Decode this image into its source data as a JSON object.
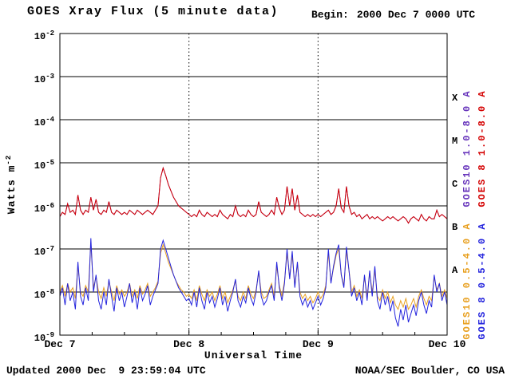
{
  "header": {
    "title": "GOES Xray Flux (5 minute data)",
    "begin_label": "Begin:",
    "begin_value": "2000 Dec 7 0000 UTC"
  },
  "footer": {
    "updated": "Updated 2000 Dec  9 23:59:04 UTC",
    "credit": "NOAA/SEC Boulder, CO USA"
  },
  "chart_data": {
    "type": "line",
    "title": "GOES Xray Flux (5 minute data)",
    "xlabel": "Universal Time",
    "ylabel": "Watts m-2",
    "ylabel_base": "Watts m",
    "ylabel_exp": "-2",
    "y_base": "10",
    "x_range_days": [
      0,
      3
    ],
    "ylog_range": [
      -9,
      -2
    ],
    "y_tick_exponents": [
      -2,
      -3,
      -4,
      -5,
      -6,
      -7,
      -8,
      -9
    ],
    "x_ticks": [
      {
        "label": "Dec 7",
        "day": 0
      },
      {
        "label": "Dec 8",
        "day": 1
      },
      {
        "label": "Dec 9",
        "day": 2
      },
      {
        "label": "Dec 10",
        "day": 3
      }
    ],
    "flare_classes": [
      {
        "label": "X",
        "log_center": -3.5
      },
      {
        "label": "M",
        "log_center": -4.5
      },
      {
        "label": "C",
        "log_center": -5.5
      },
      {
        "label": "B",
        "log_center": -6.5
      },
      {
        "label": "A",
        "log_center": -7.5
      }
    ],
    "grid": {
      "h_line_exponents": [
        -3,
        -4,
        -5,
        -6,
        -7,
        -8
      ],
      "v_dotted_days": [
        1,
        2
      ]
    },
    "sample_step_days": 0.02,
    "series": [
      {
        "name": "GOES10 1.0-8.0 A",
        "color": "#6633bb",
        "values": [
          -6.25,
          -6.15,
          -6.2,
          -5.95,
          -6.15,
          -6.1,
          -6.2,
          -5.75,
          -6.1,
          -6.2,
          -6.1,
          -6.15,
          -5.8,
          -6.1,
          -5.85,
          -6.15,
          -6.2,
          -6.1,
          -6.15,
          -5.9,
          -6.15,
          -6.2,
          -6.1,
          -6.15,
          -6.2,
          -6.15,
          -6.2,
          -6.1,
          -6.15,
          -6.2,
          -6.1,
          -6.15,
          -6.2,
          -6.15,
          -6.1,
          -6.15,
          -6.2,
          -6.1,
          -6.0,
          -5.35,
          -5.12,
          -5.3,
          -5.5,
          -5.65,
          -5.8,
          -5.9,
          -6.0,
          -6.05,
          -6.1,
          -6.15,
          -6.2,
          -6.25,
          -6.2,
          -6.25,
          -6.1,
          -6.2,
          -6.25,
          -6.15,
          -6.2,
          -6.25,
          -6.2,
          -6.25,
          -6.1,
          -6.2,
          -6.25,
          -6.3,
          -6.2,
          -6.25,
          -6.0,
          -6.2,
          -6.25,
          -6.2,
          -6.25,
          -6.1,
          -6.2,
          -6.25,
          -6.2,
          -5.9,
          -6.15,
          -6.2,
          -6.25,
          -6.2,
          -6.1,
          -6.2,
          -5.8,
          -6.05,
          -6.2,
          -6.1,
          -5.55,
          -6.0,
          -5.6,
          -6.1,
          -5.75,
          -6.15,
          -6.2,
          -6.25,
          -6.2,
          -6.25,
          -6.2,
          -6.25,
          -6.2,
          -6.25,
          -6.2,
          -6.15,
          -6.1,
          -6.2,
          -6.15,
          -6.0,
          -5.6,
          -6.05,
          -6.15,
          -5.55,
          -6.0,
          -6.2,
          -6.15,
          -6.25,
          -6.2,
          -6.3,
          -6.25,
          -6.2,
          -6.3,
          -6.25,
          -6.3,
          -6.25,
          -6.3,
          -6.35,
          -6.3,
          -6.25,
          -6.3,
          -6.25,
          -6.3,
          -6.35,
          -6.3,
          -6.25,
          -6.3,
          -6.4,
          -6.3,
          -6.25,
          -6.3,
          -6.35,
          -6.2,
          -6.3,
          -6.35,
          -6.25,
          -6.3,
          -6.3,
          -6.1,
          -6.25,
          -6.2,
          -6.25,
          -6.3
        ]
      },
      {
        "name": "GOES 8 1.0-8.0 A",
        "color": "#d40000",
        "values": [
          -6.25,
          -6.15,
          -6.2,
          -5.95,
          -6.15,
          -6.1,
          -6.2,
          -5.75,
          -6.1,
          -6.2,
          -6.1,
          -6.15,
          -5.8,
          -6.1,
          -5.85,
          -6.15,
          -6.2,
          -6.1,
          -6.15,
          -5.9,
          -6.15,
          -6.2,
          -6.1,
          -6.15,
          -6.2,
          -6.15,
          -6.2,
          -6.1,
          -6.15,
          -6.2,
          -6.1,
          -6.15,
          -6.2,
          -6.15,
          -6.1,
          -6.15,
          -6.2,
          -6.1,
          -6.0,
          -5.35,
          -5.12,
          -5.3,
          -5.5,
          -5.65,
          -5.8,
          -5.9,
          -6.0,
          -6.05,
          -6.1,
          -6.15,
          -6.2,
          -6.25,
          -6.2,
          -6.25,
          -6.1,
          -6.2,
          -6.25,
          -6.15,
          -6.2,
          -6.25,
          -6.2,
          -6.25,
          -6.1,
          -6.2,
          -6.25,
          -6.3,
          -6.2,
          -6.25,
          -6.0,
          -6.2,
          -6.25,
          -6.2,
          -6.25,
          -6.1,
          -6.2,
          -6.25,
          -6.2,
          -5.9,
          -6.15,
          -6.2,
          -6.25,
          -6.2,
          -6.1,
          -6.2,
          -5.8,
          -6.05,
          -6.2,
          -6.1,
          -5.55,
          -6.0,
          -5.6,
          -6.1,
          -5.75,
          -6.15,
          -6.2,
          -6.25,
          -6.2,
          -6.25,
          -6.2,
          -6.25,
          -6.2,
          -6.25,
          -6.2,
          -6.15,
          -6.1,
          -6.2,
          -6.15,
          -6.0,
          -5.6,
          -6.05,
          -6.15,
          -5.55,
          -6.0,
          -6.2,
          -6.15,
          -6.25,
          -6.2,
          -6.3,
          -6.25,
          -6.2,
          -6.3,
          -6.25,
          -6.3,
          -6.25,
          -6.3,
          -6.35,
          -6.3,
          -6.25,
          -6.3,
          -6.25,
          -6.3,
          -6.35,
          -6.3,
          -6.25,
          -6.3,
          -6.4,
          -6.3,
          -6.25,
          -6.3,
          -6.35,
          -6.2,
          -6.3,
          -6.35,
          -6.25,
          -6.3,
          -6.3,
          -6.1,
          -6.25,
          -6.2,
          -6.25,
          -6.3
        ]
      },
      {
        "name": "GOES10 0.5-4.0 A",
        "color": "#e8a020",
        "values": [
          -8.0,
          -7.85,
          -8.1,
          -7.8,
          -8.0,
          -7.9,
          -8.15,
          -7.4,
          -8.0,
          -8.1,
          -7.85,
          -8.0,
          -6.85,
          -7.9,
          -7.65,
          -8.0,
          -8.15,
          -7.9,
          -8.1,
          -7.75,
          -8.0,
          -8.2,
          -7.85,
          -8.05,
          -7.95,
          -8.1,
          -8.0,
          -7.8,
          -8.1,
          -7.95,
          -8.15,
          -7.85,
          -8.05,
          -7.95,
          -7.8,
          -8.1,
          -8.0,
          -7.9,
          -7.75,
          -7.1,
          -6.9,
          -7.1,
          -7.3,
          -7.45,
          -7.6,
          -7.75,
          -7.85,
          -7.95,
          -8.0,
          -8.1,
          -8.05,
          -8.15,
          -7.95,
          -8.2,
          -7.85,
          -8.05,
          -8.2,
          -7.95,
          -8.1,
          -8.0,
          -8.2,
          -8.05,
          -7.85,
          -8.15,
          -8.0,
          -8.25,
          -8.1,
          -7.95,
          -7.75,
          -8.1,
          -8.2,
          -8.0,
          -8.15,
          -7.85,
          -8.05,
          -8.15,
          -7.95,
          -7.55,
          -8.0,
          -8.15,
          -8.1,
          -7.95,
          -7.8,
          -8.1,
          -7.4,
          -7.85,
          -8.1,
          -7.75,
          -7.1,
          -7.65,
          -7.15,
          -7.85,
          -7.35,
          -8.0,
          -8.15,
          -8.05,
          -8.2,
          -8.1,
          -8.25,
          -8.15,
          -8.0,
          -8.15,
          -8.05,
          -7.85,
          -7.1,
          -7.75,
          -7.45,
          -7.15,
          -7.0,
          -7.6,
          -7.85,
          -7.05,
          -7.5,
          -8.0,
          -7.85,
          -8.1,
          -7.95,
          -8.15,
          -7.65,
          -8.1,
          -7.55,
          -8.0,
          -7.5,
          -8.1,
          -8.2,
          -7.95,
          -8.15,
          -8.0,
          -8.25,
          -8.1,
          -8.3,
          -8.4,
          -8.2,
          -8.35,
          -8.15,
          -8.4,
          -8.3,
          -8.15,
          -8.35,
          -8.1,
          -7.95,
          -8.15,
          -8.3,
          -8.1,
          -8.2,
          -7.65,
          -7.95,
          -7.8,
          -8.1,
          -7.95,
          -8.15
        ]
      },
      {
        "name": "GOES 8 0.5-4.0 A",
        "color": "#2222dd",
        "values": [
          -8.1,
          -7.9,
          -8.3,
          -7.8,
          -8.2,
          -8.0,
          -8.4,
          -7.3,
          -8.1,
          -8.3,
          -7.9,
          -8.2,
          -6.75,
          -8.0,
          -7.6,
          -8.2,
          -8.4,
          -8.0,
          -8.3,
          -7.7,
          -8.1,
          -8.45,
          -7.9,
          -8.2,
          -8.0,
          -8.35,
          -8.1,
          -7.8,
          -8.25,
          -8.0,
          -8.4,
          -7.9,
          -8.2,
          -8.05,
          -7.85,
          -8.3,
          -8.1,
          -7.95,
          -7.8,
          -7.0,
          -6.8,
          -7.0,
          -7.2,
          -7.4,
          -7.6,
          -7.75,
          -7.9,
          -8.0,
          -8.1,
          -8.2,
          -8.15,
          -8.3,
          -8.0,
          -8.35,
          -7.9,
          -8.2,
          -8.4,
          -8.0,
          -8.25,
          -8.1,
          -8.35,
          -8.15,
          -7.9,
          -8.3,
          -8.1,
          -8.45,
          -8.2,
          -8.0,
          -7.7,
          -8.2,
          -8.35,
          -8.1,
          -8.25,
          -7.9,
          -8.15,
          -8.3,
          -8.0,
          -7.5,
          -8.1,
          -8.3,
          -8.2,
          -8.0,
          -7.85,
          -8.2,
          -7.3,
          -7.9,
          -8.2,
          -7.8,
          -7.0,
          -7.7,
          -7.05,
          -7.9,
          -7.3,
          -8.1,
          -8.3,
          -8.15,
          -8.35,
          -8.2,
          -8.4,
          -8.25,
          -8.1,
          -8.3,
          -8.15,
          -7.9,
          -7.0,
          -7.8,
          -7.4,
          -7.1,
          -6.9,
          -7.6,
          -7.9,
          -6.95,
          -7.5,
          -8.1,
          -7.9,
          -8.2,
          -8.0,
          -8.3,
          -7.6,
          -8.2,
          -7.5,
          -8.1,
          -7.4,
          -8.2,
          -8.4,
          -8.0,
          -8.3,
          -8.1,
          -8.45,
          -8.2,
          -8.6,
          -8.8,
          -8.4,
          -8.65,
          -8.3,
          -8.7,
          -8.5,
          -8.3,
          -8.55,
          -8.2,
          -8.0,
          -8.3,
          -8.5,
          -8.2,
          -8.35,
          -7.6,
          -8.0,
          -7.8,
          -8.2,
          -8.0,
          -8.3
        ]
      }
    ],
    "legend": [
      {
        "text": "GOES10 1.0-8.0 A",
        "color": "#6633bb",
        "row": "upper",
        "col": 0
      },
      {
        "text": "GOES 8 1.0-8.0 A",
        "color": "#d40000",
        "row": "upper",
        "col": 1
      },
      {
        "text": "GOES10 0.5-4.0 A",
        "color": "#e8a020",
        "row": "lower",
        "col": 0
      },
      {
        "text": "GOES 8 0.5-4.0 A",
        "color": "#2222dd",
        "row": "lower",
        "col": 1
      }
    ]
  }
}
